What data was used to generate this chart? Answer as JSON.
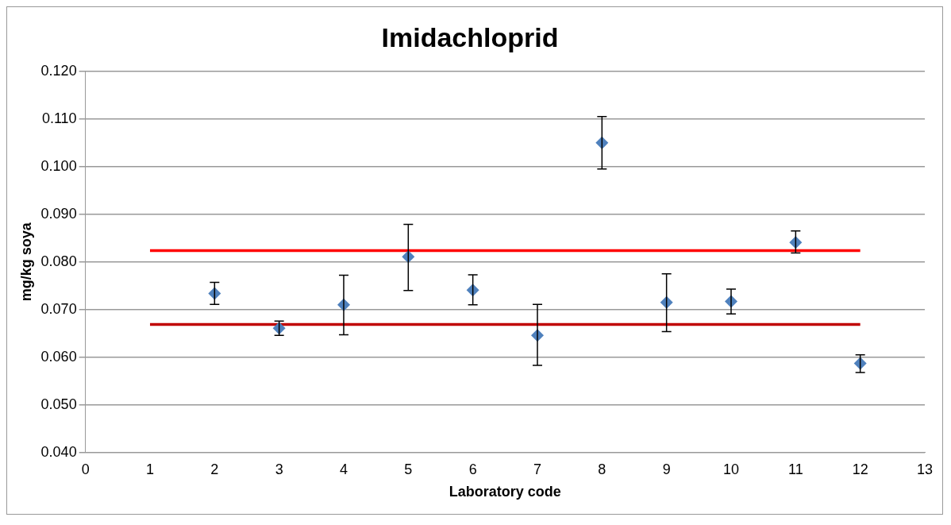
{
  "chart_data": {
    "type": "scatter",
    "title": "Imidachloprid",
    "xlabel": "Laboratory code",
    "ylabel": "mg/kg soya",
    "xlim": [
      0,
      13
    ],
    "xticks": [
      0,
      1,
      2,
      3,
      4,
      5,
      6,
      7,
      8,
      9,
      10,
      11,
      12,
      13
    ],
    "ylim": [
      0.04,
      0.12
    ],
    "yticks": [
      {
        "value": 0.04,
        "label": "0.040"
      },
      {
        "value": 0.05,
        "label": "0.050"
      },
      {
        "value": 0.06,
        "label": "0.060"
      },
      {
        "value": 0.07,
        "label": "0.070"
      },
      {
        "value": 0.08,
        "label": "0.080"
      },
      {
        "value": 0.09,
        "label": "0.090"
      },
      {
        "value": 0.1,
        "label": "0.100"
      },
      {
        "value": 0.11,
        "label": "0.110"
      },
      {
        "value": 0.12,
        "label": "0.120"
      }
    ],
    "grid": "y",
    "legend": false,
    "series": [
      {
        "marker": "diamond",
        "color": "#4f81bd",
        "x": [
          2,
          3,
          4,
          5,
          6,
          7,
          8,
          9,
          10,
          11,
          12
        ],
        "values": [
          0.0734,
          0.0661,
          0.071,
          0.0811,
          0.0741,
          0.0646,
          0.105,
          0.0715,
          0.0717,
          0.0841,
          0.0587
        ],
        "errors": [
          [
            0.0711,
            0.0757
          ],
          [
            0.0646,
            0.0676
          ],
          [
            0.0647,
            0.0772
          ],
          [
            0.074,
            0.0879
          ],
          [
            0.071,
            0.0773
          ],
          [
            0.0583,
            0.0711
          ],
          [
            0.0995,
            0.1105
          ],
          [
            0.0654,
            0.0775
          ],
          [
            0.0691,
            0.0743
          ],
          [
            0.0819,
            0.0865
          ],
          [
            0.0568,
            0.0605
          ]
        ]
      },
      {
        "type": "line",
        "marker": "none",
        "color": "#ff0000",
        "x": [
          1,
          12
        ],
        "values": [
          0.0824,
          0.0824
        ]
      },
      {
        "type": "line",
        "marker": "none",
        "color": "#c00000",
        "x": [
          1,
          12
        ],
        "values": [
          0.0669,
          0.0669
        ]
      }
    ]
  }
}
